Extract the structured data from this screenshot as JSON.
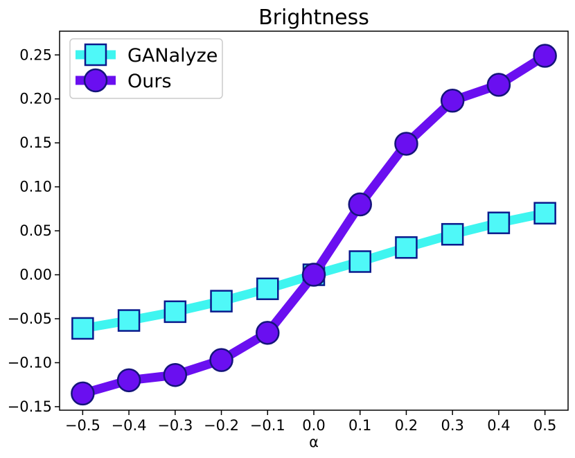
{
  "chart_data": {
    "type": "line",
    "title": "Brightness",
    "xlabel": "α",
    "ylabel": "",
    "x": [
      -0.5,
      -0.4,
      -0.3,
      -0.2,
      -0.1,
      0.0,
      0.1,
      0.2,
      0.3,
      0.4,
      0.5
    ],
    "xticks": [
      "−0.5",
      "−0.4",
      "−0.3",
      "−0.2",
      "−0.1",
      "0.0",
      "0.1",
      "0.2",
      "0.3",
      "0.4",
      "0.5"
    ],
    "yticks": [
      {
        "value": -0.15,
        "label": "−0.15"
      },
      {
        "value": -0.1,
        "label": "−0.10"
      },
      {
        "value": -0.05,
        "label": "−0.05"
      },
      {
        "value": 0.0,
        "label": "0.00"
      },
      {
        "value": 0.05,
        "label": "0.05"
      },
      {
        "value": 0.1,
        "label": "0.10"
      },
      {
        "value": 0.15,
        "label": "0.15"
      },
      {
        "value": 0.2,
        "label": "0.20"
      },
      {
        "value": 0.25,
        "label": "0.25"
      }
    ],
    "xlim": [
      -0.55,
      0.55
    ],
    "ylim": [
      -0.154,
      0.277
    ],
    "grid": false,
    "legend_position": "top-left",
    "series": [
      {
        "name": "GANalyze",
        "marker": "square",
        "line_color": "#3ff5f0",
        "marker_face": "#4ff8f8",
        "marker_edge": "#0a1a8c",
        "values": [
          -0.061,
          -0.052,
          -0.042,
          -0.03,
          -0.016,
          0.0,
          0.015,
          0.031,
          0.046,
          0.059,
          0.07
        ]
      },
      {
        "name": "Ours",
        "marker": "circle",
        "line_color": "#6a0ff0",
        "marker_face": "#6a0ff0",
        "marker_edge": "#14147a",
        "values": [
          -0.135,
          -0.12,
          -0.114,
          -0.097,
          -0.066,
          0.0,
          0.08,
          0.149,
          0.198,
          0.216,
          0.249
        ]
      }
    ]
  }
}
